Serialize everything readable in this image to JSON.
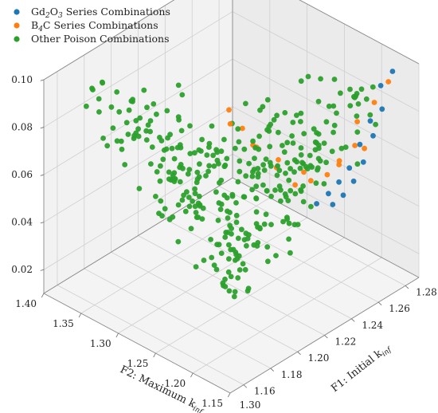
{
  "chart_data": {
    "type": "scatter",
    "dimensions": 3,
    "xlabel": "F1: Initial k",
    "xlabel_sub": "inf",
    "ylabel": "F2: Maximum k",
    "ylabel_sub": "inf",
    "zlabel": "",
    "xlim": [
      1.15,
      1.29
    ],
    "ylim": [
      1.15,
      1.4
    ],
    "zlim": [
      0.01,
      0.1
    ],
    "xticks": [
      "1.16",
      "1.18",
      "1.20",
      "1.22",
      "1.24",
      "1.26",
      "1.28"
    ],
    "yticks": [
      "1.15",
      "1.20",
      "1.25",
      "1.30",
      "1.35",
      "1.40"
    ],
    "zticks": [
      "0.02",
      "0.04",
      "0.06",
      "0.08",
      "0.10"
    ],
    "extra_tick": "1.30",
    "grid": true,
    "legend_position": "top-left",
    "legend": [
      {
        "parts": [
          "Gd",
          "2",
          "O",
          "3",
          " Series Combinations"
        ],
        "color": "#1f77b4"
      },
      {
        "parts": [
          "B",
          "4",
          "C Series Combinations",
          "",
          ""
        ],
        "color": "#ff7f0e"
      },
      {
        "parts": [
          "Other Poison Combinations",
          "",
          "",
          "",
          ""
        ],
        "color": "#2ca02c"
      }
    ],
    "series": [
      {
        "name": "Gd2O3 Series Combinations",
        "color": "#1f77b4",
        "points": [
          [
            1.276,
            1.16,
            0.1
          ],
          [
            1.275,
            1.174,
            0.092
          ],
          [
            1.271,
            1.165,
            0.085
          ],
          [
            1.27,
            1.179,
            0.078
          ],
          [
            1.266,
            1.168,
            0.075
          ],
          [
            1.265,
            1.184,
            0.069
          ],
          [
            1.261,
            1.172,
            0.065
          ],
          [
            1.26,
            1.189,
            0.06
          ],
          [
            1.256,
            1.176,
            0.058
          ],
          [
            1.255,
            1.194,
            0.055
          ],
          [
            1.251,
            1.181,
            0.053
          ],
          [
            1.25,
            1.199,
            0.051
          ],
          [
            1.246,
            1.186,
            0.05
          ],
          [
            1.244,
            1.204,
            0.048
          ]
        ]
      },
      {
        "name": "B4C Series Combinations",
        "color": "#ff7f0e",
        "points": [
          [
            1.274,
            1.162,
            0.096
          ],
          [
            1.268,
            1.17,
            0.088
          ],
          [
            1.262,
            1.182,
            0.08
          ],
          [
            1.258,
            1.178,
            0.072
          ],
          [
            1.252,
            1.188,
            0.066
          ],
          [
            1.248,
            1.197,
            0.06
          ],
          [
            1.243,
            1.21,
            0.057
          ],
          [
            1.238,
            1.222,
            0.055
          ],
          [
            1.232,
            1.236,
            0.062
          ],
          [
            1.226,
            1.252,
            0.07
          ],
          [
            1.221,
            1.262,
            0.078
          ],
          [
            1.216,
            1.271,
            0.086
          ],
          [
            1.212,
            1.262,
            0.083
          ],
          [
            1.22,
            1.246,
            0.074
          ],
          [
            1.23,
            1.23,
            0.067
          ],
          [
            1.24,
            1.214,
            0.061
          ],
          [
            1.254,
            1.192,
            0.063
          ],
          [
            1.264,
            1.176,
            0.069
          ]
        ]
      },
      {
        "name": "Other Poison Combinations",
        "color": "#2ca02c",
        "generator": "uniform-triangle",
        "count": 360,
        "seed": 11,
        "corners": [
          [
            1.275,
            1.158
          ],
          [
            1.16,
            1.385
          ],
          [
            1.16,
            1.158
          ]
        ],
        "z_trend": [
          0.045,
          0.1
        ],
        "z_noise": 0.018
      }
    ]
  }
}
